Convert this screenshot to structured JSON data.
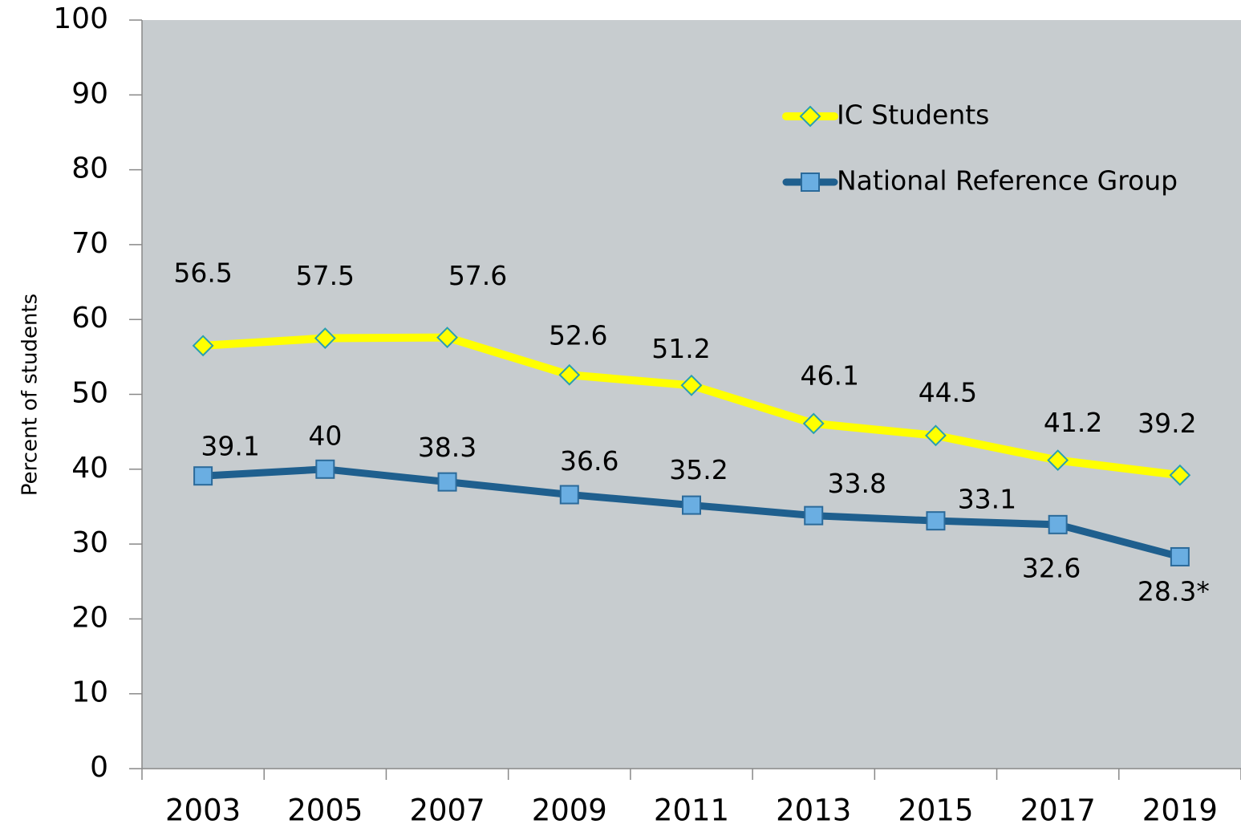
{
  "chart_data": {
    "type": "line",
    "categories": [
      "2003",
      "2005",
      "2007",
      "2009",
      "2011",
      "2013",
      "2015",
      "2017",
      "2019"
    ],
    "y_label": "Percent  of  students",
    "series": [
      {
        "name": "IC Students",
        "color": "#ffff00",
        "marker": "diamond",
        "marker_color": "#ffff00",
        "marker_edge": "#2a9fb0",
        "values": [
          56.5,
          57.5,
          57.6,
          52.6,
          51.2,
          46.1,
          44.5,
          41.2,
          39.2
        ]
      },
      {
        "name": "National Reference Group",
        "color": "#1f5f8e",
        "marker": "square",
        "marker_color": "#6aaee2",
        "marker_edge": "#2b6a9a",
        "values": [
          39.1,
          40,
          38.3,
          36.6,
          35.2,
          33.8,
          33.1,
          32.6,
          28.3
        ],
        "value_labels": [
          "39.1",
          "40",
          "38.3",
          "36.6",
          "35.2",
          "33.8",
          "33.1",
          "32.6",
          "28.3*"
        ]
      }
    ],
    "ylim": [
      0,
      100
    ],
    "yticks": [
      0,
      10,
      20,
      30,
      40,
      50,
      60,
      70,
      80,
      90,
      100
    ],
    "grid": false,
    "legend": "top-right",
    "plot_background": "#c7cccf"
  }
}
